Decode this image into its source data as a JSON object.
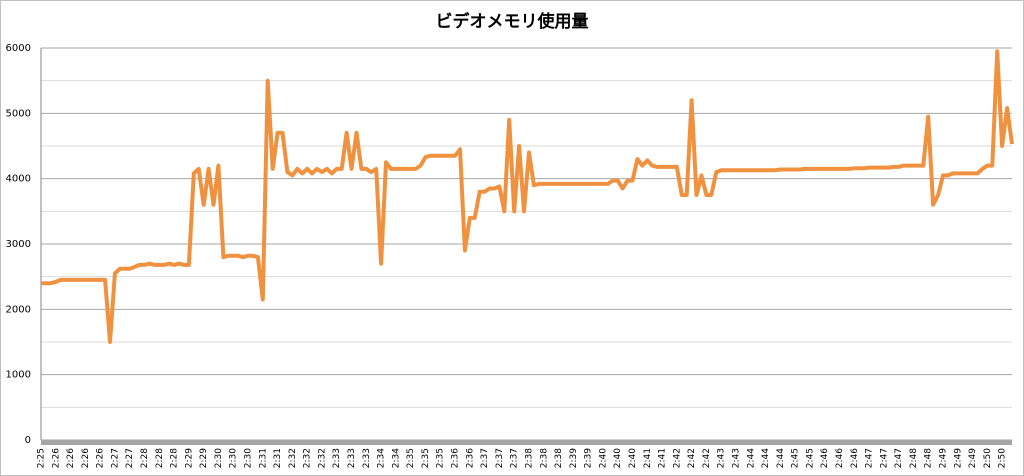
{
  "chart_data": {
    "type": "line",
    "title": "ビデオメモリ使用量",
    "color": "#f0913f",
    "ylim": [
      0,
      6000
    ],
    "yticks": [
      0,
      1000,
      2000,
      3000,
      4000,
      5000,
      6000
    ],
    "minor_gridlines": [
      500,
      1500,
      2500,
      3500,
      4500,
      5500
    ],
    "grid": true,
    "categories": [
      "2:25",
      null,
      null,
      "2:26",
      null,
      null,
      "2:26",
      null,
      null,
      "2:26",
      null,
      null,
      "2:26",
      null,
      null,
      "2:27",
      null,
      null,
      "2:27",
      null,
      null,
      "2:28",
      null,
      null,
      "2:28",
      null,
      null,
      "2:28",
      null,
      null,
      "2:29",
      null,
      null,
      "2:29",
      null,
      null,
      "2:30",
      null,
      null,
      "2:30",
      null,
      null,
      "2:30",
      null,
      null,
      "2:31",
      null,
      null,
      "2:31",
      null,
      null,
      "2:32",
      null,
      null,
      "2:32",
      null,
      null,
      "2:32",
      null,
      null,
      "2:33",
      null,
      null,
      "2:33",
      null,
      null,
      "2:33",
      null,
      null,
      "2:34",
      null,
      null,
      "2:34",
      null,
      null,
      "2:35",
      null,
      null,
      "2:35",
      null,
      null,
      "2:35",
      null,
      null,
      "2:36",
      null,
      null,
      "2:36",
      null,
      null,
      "2:37",
      null,
      null,
      "2:37",
      null,
      null,
      "2:37",
      null,
      null,
      "2:38",
      null,
      null,
      "2:38",
      null,
      null,
      "2:38",
      null,
      null,
      "2:39",
      null,
      null,
      "2:39",
      null,
      null,
      "2:40",
      null,
      null,
      "2:40",
      null,
      null,
      "2:40",
      null,
      null,
      "2:41",
      null,
      null,
      "2:41",
      null,
      null,
      "2:42",
      null,
      null,
      "2:42",
      null,
      null,
      "2:42",
      null,
      null,
      "2:43",
      null,
      null,
      "2:43",
      null,
      null,
      "2:44",
      null,
      null,
      "2:44",
      null,
      null,
      "2:44",
      null,
      null,
      "2:45",
      null,
      null,
      "2:45",
      null,
      null,
      "2:46",
      null,
      null,
      "2:46",
      null,
      null,
      "2:46",
      null,
      null,
      "2:47",
      null,
      null,
      "2:47",
      null,
      null,
      "2:47",
      null,
      null,
      "2:48",
      null,
      null,
      "2:48",
      null,
      null,
      "2:49",
      null,
      null,
      "2:49",
      null,
      null,
      "2:49",
      null,
      null,
      "2:50",
      null,
      null,
      "2:50",
      null,
      null
    ],
    "values": [
      2400,
      2400,
      2400,
      2420,
      2450,
      2450,
      2450,
      2450,
      2450,
      2450,
      2450,
      2450,
      2450,
      2450,
      1500,
      2550,
      2620,
      2620,
      2620,
      2650,
      2680,
      2680,
      2700,
      2680,
      2680,
      2680,
      2700,
      2680,
      2700,
      2680,
      2680,
      4080,
      4150,
      3600,
      4150,
      3600,
      4200,
      2800,
      2820,
      2820,
      2820,
      2800,
      2820,
      2820,
      2800,
      2150,
      5500,
      4150,
      4700,
      4700,
      4100,
      4050,
      4150,
      4080,
      4150,
      4080,
      4150,
      4100,
      4150,
      4080,
      4150,
      4150,
      4700,
      4150,
      4700,
      4150,
      4150,
      4100,
      4150,
      2700,
      4250,
      4150,
      4150,
      4150,
      4150,
      4150,
      4150,
      4200,
      4330,
      4350,
      4350,
      4350,
      4350,
      4350,
      4350,
      4450,
      2900,
      3400,
      3400,
      3800,
      3800,
      3850,
      3850,
      3880,
      3500,
      4900,
      3500,
      4500,
      3500,
      4400,
      3900,
      3920,
      3920,
      3920,
      3920,
      3920,
      3920,
      3920,
      3920,
      3920,
      3920,
      3920,
      3920,
      3920,
      3920,
      3920,
      3970,
      3970,
      3850,
      3970,
      3970,
      4300,
      4200,
      4280,
      4200,
      4180,
      4180,
      4180,
      4180,
      4180,
      3750,
      3750,
      5200,
      3750,
      4050,
      3750,
      3750,
      4100,
      4130,
      4130,
      4130,
      4130,
      4130,
      4130,
      4130,
      4130,
      4130,
      4130,
      4130,
      4130,
      4140,
      4140,
      4140,
      4140,
      4140,
      4150,
      4150,
      4150,
      4150,
      4150,
      4150,
      4150,
      4150,
      4150,
      4150,
      4160,
      4160,
      4160,
      4170,
      4170,
      4170,
      4170,
      4170,
      4180,
      4180,
      4200,
      4200,
      4200,
      4200,
      4200,
      4950,
      3600,
      3750,
      4050,
      4050,
      4080,
      4080,
      4080,
      4080,
      4080,
      4080,
      4150,
      4200,
      4200,
      5950,
      4500,
      5080,
      4530
    ]
  }
}
